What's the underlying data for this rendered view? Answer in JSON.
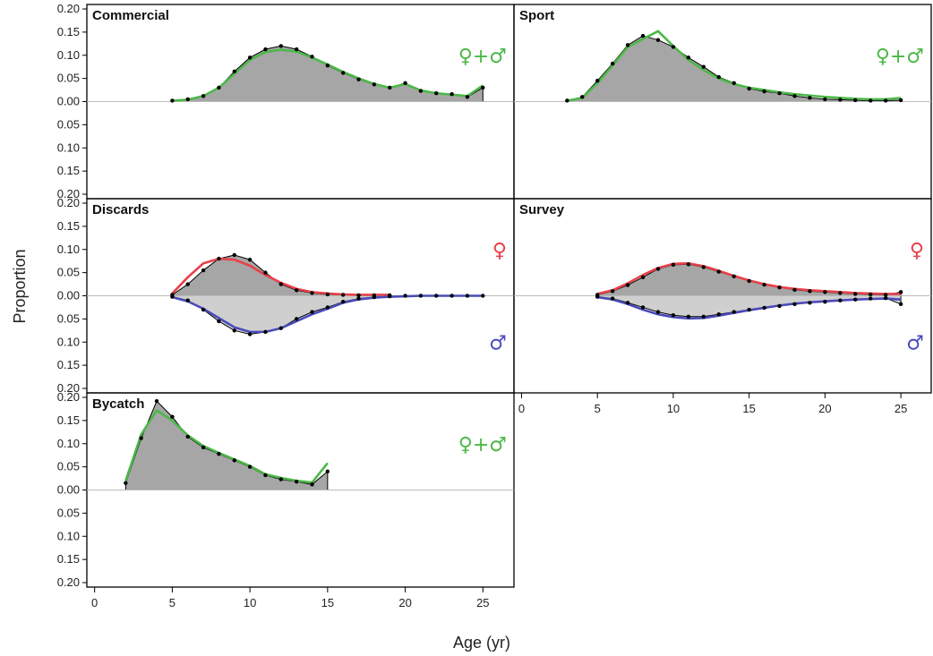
{
  "figure": {
    "ylabel": "Proportion",
    "xlabel": "Age (yr)",
    "symbols": {
      "female": "♀",
      "male": "♂",
      "plus": "+"
    },
    "colors": {
      "observed": "#000000",
      "combined": "#4cb848",
      "female": "#e8404a",
      "male": "#4a4aba",
      "fill_upper": "#a6a6a6",
      "fill_lower": "#cfcfcf",
      "zero_line": "#bbbbbb"
    }
  },
  "chart_data": [
    {
      "type": "area",
      "title": "Commercial",
      "panel": "top-left",
      "ylim": [
        -0.2,
        0.2
      ],
      "yticks": [
        "0.20",
        "0.15",
        "0.10",
        "0.05",
        "0.00",
        "0.05",
        "0.10",
        "0.15",
        "0.20"
      ],
      "xlim": [
        -0.5,
        27
      ],
      "xticks": [],
      "legend": "♀+♂",
      "legend_color": "combined",
      "observed": {
        "x": [
          5,
          6,
          7,
          8,
          9,
          10,
          11,
          12,
          13,
          14,
          15,
          16,
          17,
          18,
          19,
          20,
          21,
          22,
          23,
          24,
          25
        ],
        "y": [
          0.002,
          0.005,
          0.012,
          0.03,
          0.065,
          0.095,
          0.113,
          0.12,
          0.113,
          0.097,
          0.078,
          0.062,
          0.048,
          0.037,
          0.03,
          0.04,
          0.023,
          0.018,
          0.016,
          0.01,
          0.03
        ]
      },
      "fits": [
        {
          "color": "combined",
          "sign": 1,
          "x": [
            5,
            6,
            7,
            8,
            9,
            10,
            11,
            12,
            13,
            14,
            15,
            16,
            17,
            18,
            19,
            20,
            21,
            22,
            23,
            24,
            25
          ],
          "y": [
            0.002,
            0.004,
            0.012,
            0.03,
            0.06,
            0.09,
            0.107,
            0.112,
            0.108,
            0.095,
            0.08,
            0.064,
            0.05,
            0.038,
            0.03,
            0.038,
            0.024,
            0.018,
            0.015,
            0.012,
            0.035
          ]
        }
      ]
    },
    {
      "type": "area",
      "title": "Sport",
      "panel": "top-right",
      "ylim": [
        -0.2,
        0.2
      ],
      "yticks": [],
      "xlim": [
        -0.5,
        27
      ],
      "xticks": [],
      "legend": "♀+♂",
      "legend_color": "combined",
      "observed": {
        "x": [
          3,
          4,
          5,
          6,
          7,
          8,
          9,
          10,
          11,
          12,
          13,
          14,
          15,
          16,
          17,
          18,
          19,
          20,
          21,
          22,
          23,
          24,
          25
        ],
        "y": [
          0.002,
          0.01,
          0.045,
          0.082,
          0.122,
          0.142,
          0.133,
          0.118,
          0.095,
          0.075,
          0.053,
          0.04,
          0.028,
          0.022,
          0.018,
          0.012,
          0.008,
          0.005,
          0.004,
          0.003,
          0.002,
          0.002,
          0.003
        ]
      },
      "fits": [
        {
          "color": "combined",
          "sign": 1,
          "x": [
            3,
            4,
            5,
            6,
            7,
            8,
            9,
            10,
            11,
            12,
            13,
            14,
            15,
            16,
            17,
            18,
            19,
            20,
            21,
            22,
            23,
            24,
            25
          ],
          "y": [
            0.002,
            0.008,
            0.04,
            0.078,
            0.118,
            0.135,
            0.152,
            0.12,
            0.09,
            0.068,
            0.05,
            0.038,
            0.03,
            0.025,
            0.02,
            0.016,
            0.013,
            0.01,
            0.008,
            0.006,
            0.005,
            0.005,
            0.008
          ]
        }
      ]
    },
    {
      "type": "area",
      "title": "Discards",
      "panel": "middle-left",
      "ylim": [
        -0.2,
        0.2
      ],
      "yticks": [
        "0.20",
        "0.15",
        "0.10",
        "0.05",
        "0.00",
        "0.05",
        "0.10",
        "0.15",
        "0.20"
      ],
      "xlim": [
        -0.5,
        27
      ],
      "xticks": [],
      "legend_female": "♀",
      "legend_male": "♂",
      "observed": {
        "x": [
          5,
          6,
          7,
          8,
          9,
          10,
          11,
          12,
          13,
          14,
          15,
          16,
          17,
          18,
          19
        ],
        "y": [
          0.002,
          0.025,
          0.055,
          0.08,
          0.088,
          0.078,
          0.05,
          0.025,
          0.012,
          0.006,
          0.003,
          0.002,
          0.001,
          0.001,
          0.001
        ]
      },
      "observed_male": {
        "x": [
          5,
          6,
          7,
          8,
          9,
          10,
          11,
          12,
          13,
          14,
          15,
          16,
          17,
          18,
          19,
          20,
          21,
          22,
          23,
          24,
          25
        ],
        "y": [
          -0.002,
          -0.01,
          -0.03,
          -0.055,
          -0.075,
          -0.083,
          -0.078,
          -0.07,
          -0.05,
          -0.035,
          -0.025,
          -0.013,
          -0.006,
          -0.003,
          -0.001,
          0,
          0,
          0,
          0,
          0,
          0
        ]
      },
      "fits": [
        {
          "color": "female",
          "sign": 1,
          "x": [
            5,
            6,
            7,
            8,
            9,
            10,
            11,
            12,
            13,
            14,
            15,
            16,
            17,
            18,
            19
          ],
          "y": [
            0.005,
            0.04,
            0.07,
            0.08,
            0.078,
            0.065,
            0.045,
            0.028,
            0.015,
            0.008,
            0.005,
            0.003,
            0.002,
            0.002,
            0.002
          ]
        },
        {
          "color": "male",
          "sign": -1,
          "x": [
            5,
            6,
            7,
            8,
            9,
            10,
            11,
            12,
            13,
            14,
            15,
            16,
            17,
            18,
            19,
            20,
            21,
            22,
            23,
            24,
            25
          ],
          "y": [
            -0.003,
            -0.012,
            -0.028,
            -0.048,
            -0.068,
            -0.078,
            -0.078,
            -0.07,
            -0.055,
            -0.04,
            -0.028,
            -0.015,
            -0.008,
            -0.004,
            -0.002,
            -0.001,
            0,
            0,
            0,
            0,
            0
          ]
        }
      ]
    },
    {
      "type": "area",
      "title": "Survey",
      "panel": "middle-right",
      "ylim": [
        -0.2,
        0.2
      ],
      "yticks": [],
      "xlim": [
        -0.5,
        27
      ],
      "xticks": [
        "0",
        "5",
        "10",
        "15",
        "20",
        "25"
      ],
      "legend_female": "♀",
      "legend_male": "♂",
      "observed": {
        "x": [
          5,
          6,
          7,
          8,
          9,
          10,
          11,
          12,
          13,
          14,
          15,
          16,
          17,
          18,
          19,
          20,
          21,
          22,
          23,
          24,
          25
        ],
        "y": [
          0.002,
          0.01,
          0.023,
          0.04,
          0.058,
          0.067,
          0.068,
          0.062,
          0.052,
          0.042,
          0.032,
          0.024,
          0.018,
          0.013,
          0.01,
          0.008,
          0.006,
          0.004,
          0.003,
          0.002,
          0.008
        ]
      },
      "observed_male": {
        "x": [
          5,
          6,
          7,
          8,
          9,
          10,
          11,
          12,
          13,
          14,
          15,
          16,
          17,
          18,
          19,
          20,
          21,
          22,
          23,
          24,
          25
        ],
        "y": [
          -0.002,
          -0.006,
          -0.015,
          -0.025,
          -0.035,
          -0.042,
          -0.045,
          -0.045,
          -0.04,
          -0.035,
          -0.03,
          -0.026,
          -0.022,
          -0.018,
          -0.015,
          -0.013,
          -0.01,
          -0.008,
          -0.006,
          -0.005,
          -0.018
        ]
      },
      "fits": [
        {
          "color": "female",
          "sign": 1,
          "x": [
            5,
            6,
            7,
            8,
            9,
            10,
            11,
            12,
            13,
            14,
            15,
            16,
            17,
            18,
            19,
            20,
            21,
            22,
            23,
            24,
            25
          ],
          "y": [
            0.004,
            0.012,
            0.027,
            0.045,
            0.06,
            0.069,
            0.07,
            0.064,
            0.054,
            0.043,
            0.033,
            0.025,
            0.019,
            0.015,
            0.012,
            0.01,
            0.008,
            0.006,
            0.005,
            0.004,
            0.004
          ]
        },
        {
          "color": "male",
          "sign": -1,
          "x": [
            5,
            6,
            7,
            8,
            9,
            10,
            11,
            12,
            13,
            14,
            15,
            16,
            17,
            18,
            19,
            20,
            21,
            22,
            23,
            24,
            25
          ],
          "y": [
            -0.003,
            -0.008,
            -0.018,
            -0.03,
            -0.04,
            -0.046,
            -0.049,
            -0.048,
            -0.043,
            -0.037,
            -0.031,
            -0.026,
            -0.021,
            -0.017,
            -0.014,
            -0.012,
            -0.01,
            -0.008,
            -0.007,
            -0.006,
            -0.008
          ]
        }
      ]
    },
    {
      "type": "area",
      "title": "Bycatch",
      "panel": "bottom-left",
      "ylim": [
        -0.2,
        0.2
      ],
      "yticks": [
        "0.20",
        "0.15",
        "0.10",
        "0.05",
        "0.00",
        "0.05",
        "0.10",
        "0.15",
        "0.20"
      ],
      "xlim": [
        -0.5,
        27
      ],
      "xticks": [
        "0",
        "5",
        "10",
        "15",
        "20",
        "25"
      ],
      "legend": "♀+♂",
      "legend_color": "combined",
      "observed": {
        "x": [
          2,
          3,
          4,
          5,
          6,
          7,
          8,
          9,
          10,
          11,
          12,
          13,
          14,
          15
        ],
        "y": [
          0.015,
          0.112,
          0.192,
          0.158,
          0.115,
          0.092,
          0.078,
          0.064,
          0.05,
          0.032,
          0.023,
          0.018,
          0.012,
          0.04
        ]
      },
      "fits": [
        {
          "color": "combined",
          "sign": 1,
          "x": [
            2,
            3,
            4,
            5,
            6,
            7,
            8,
            9,
            10,
            11,
            12,
            13,
            14,
            15
          ],
          "y": [
            0.02,
            0.12,
            0.172,
            0.15,
            0.118,
            0.095,
            0.08,
            0.066,
            0.052,
            0.034,
            0.026,
            0.02,
            0.016,
            0.058
          ]
        }
      ]
    }
  ]
}
